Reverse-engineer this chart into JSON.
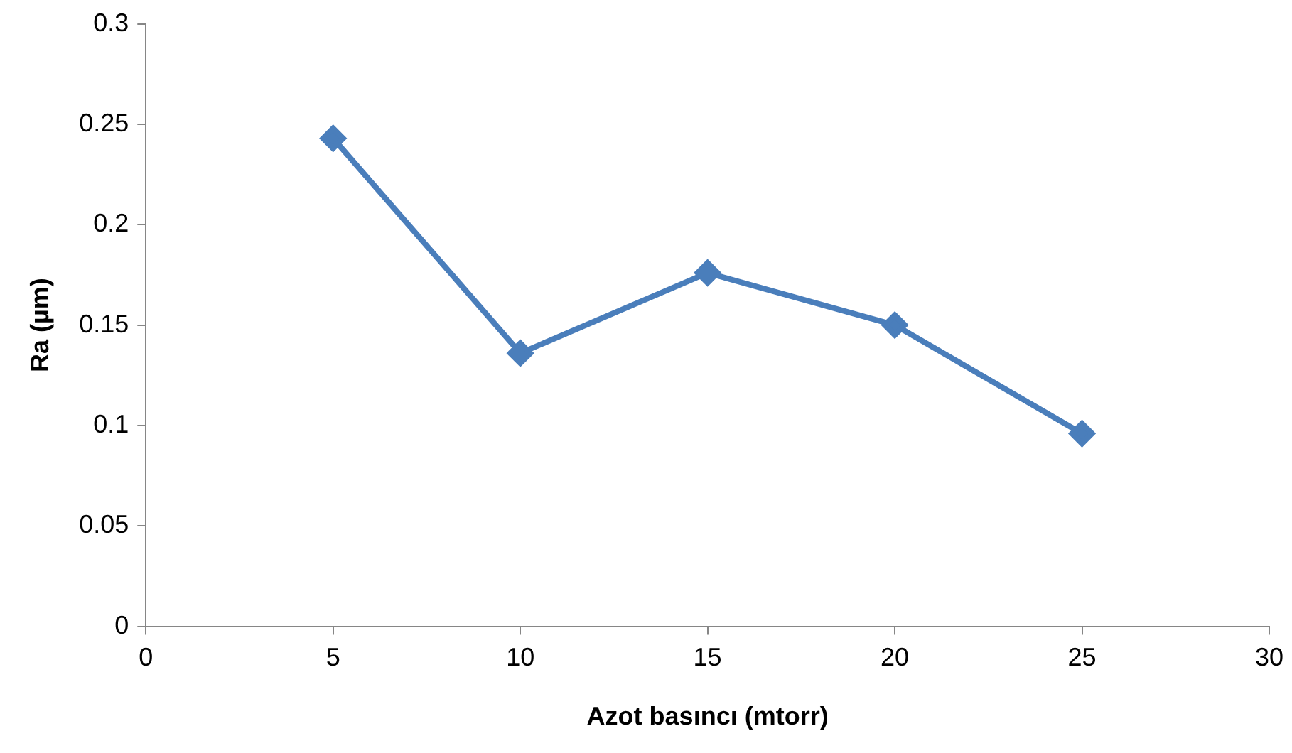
{
  "chart_data": {
    "type": "line",
    "xlabel": "Azot basıncı (mtorr)",
    "ylabel": "Ra (µm)",
    "x": [
      5,
      10,
      15,
      20,
      25
    ],
    "series": [
      {
        "color": "#4a7ebb",
        "values": [
          0.243,
          0.136,
          0.176,
          0.15,
          0.096
        ]
      }
    ],
    "xlim": [
      0,
      30
    ],
    "xticks": [
      0,
      5,
      10,
      15,
      20,
      25,
      30
    ],
    "ylim": [
      0,
      0.3
    ],
    "yticks": [
      0,
      0.05,
      0.1,
      0.15,
      0.2,
      0.25,
      0.3
    ],
    "grid": false,
    "legend": false,
    "marker": "diamond",
    "line_style": "solid"
  }
}
